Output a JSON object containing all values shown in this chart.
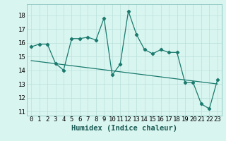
{
  "xlabel": "Humidex (Indice chaleur)",
  "x_ticks": [
    0,
    1,
    2,
    3,
    4,
    5,
    6,
    7,
    8,
    9,
    10,
    11,
    12,
    13,
    14,
    15,
    16,
    17,
    18,
    19,
    20,
    21,
    22,
    23
  ],
  "ylim": [
    10.7,
    18.8
  ],
  "yticks": [
    11,
    12,
    13,
    14,
    15,
    16,
    17,
    18
  ],
  "line1_x": [
    0,
    1,
    2,
    3,
    4,
    5,
    6,
    7,
    8,
    9,
    10,
    11,
    12,
    13,
    14,
    15,
    16,
    17,
    18,
    19,
    20,
    21,
    22,
    23
  ],
  "line1_y": [
    15.7,
    15.9,
    15.9,
    14.5,
    14.0,
    16.3,
    16.3,
    16.4,
    16.2,
    17.8,
    13.65,
    14.45,
    18.3,
    16.6,
    15.5,
    15.2,
    15.5,
    15.3,
    15.3,
    13.1,
    13.1,
    11.55,
    11.2,
    13.3
  ],
  "line2_x": [
    0,
    23
  ],
  "line2_y": [
    14.7,
    13.0
  ],
  "line_color": "#1a7a6e",
  "bg_color": "#d9f5f0",
  "grid_color": "#b8e0db",
  "tick_label_fontsize": 6.5,
  "xlabel_fontsize": 7.5
}
